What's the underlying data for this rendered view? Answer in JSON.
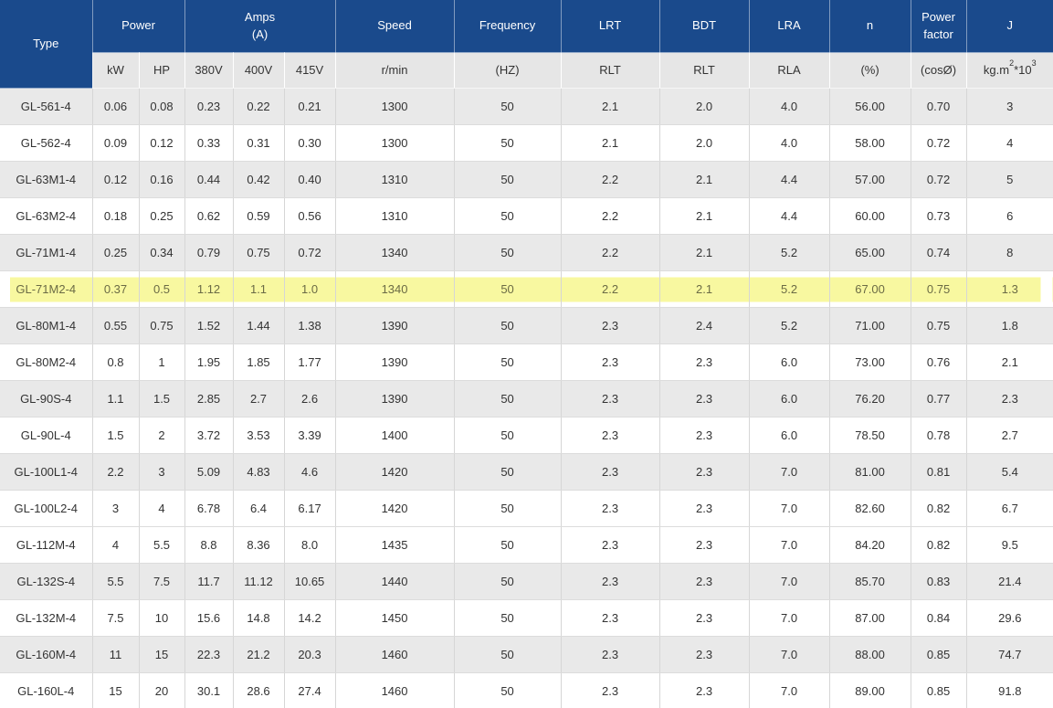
{
  "colors": {
    "header_bg": "#1a4a8c",
    "header_text": "#ffffff",
    "subheader_bg": "#e6e6e6",
    "row_bg": "#ffffff",
    "row_shaded_bg": "#e9e9e9",
    "highlight_bg": "#f8f8a0",
    "highlight_text": "#6b6b45",
    "text": "#333333",
    "border": "#d6d6d6"
  },
  "table": {
    "header": {
      "type": "Type",
      "power": "Power",
      "power_sub_kw": "kW",
      "power_sub_hp": "HP",
      "amps_line1": "Amps",
      "amps_line2": "(A)",
      "amps_sub_380": "380V",
      "amps_sub_400": "400V",
      "amps_sub_415": "415V",
      "speed": "Speed",
      "speed_sub": "r/min",
      "frequency": "Frequency",
      "frequency_sub": "(HZ)",
      "lrt": "LRT",
      "lrt_sub": "RLT",
      "bdt": "BDT",
      "bdt_sub": "RLT",
      "lra": "LRA",
      "lra_sub": "RLA",
      "n": "n",
      "n_sub": "(%)",
      "power_factor_line1": "Power",
      "power_factor_line2": "factor",
      "power_factor_sub": "(cosØ)",
      "j": "J",
      "j_unit": {
        "base": "kg.m",
        "sup1": "2",
        "mid": "*10",
        "sup2": "3"
      }
    },
    "rows": [
      {
        "cells": [
          "GL-561-4",
          "0.06",
          "0.08",
          "0.23",
          "0.22",
          "0.21",
          "1300",
          "50",
          "2.1",
          "2.0",
          "4.0",
          "56.00",
          "0.70",
          "3"
        ],
        "shaded": true,
        "highlighted": false
      },
      {
        "cells": [
          "GL-562-4",
          "0.09",
          "0.12",
          "0.33",
          "0.31",
          "0.30",
          "1300",
          "50",
          "2.1",
          "2.0",
          "4.0",
          "58.00",
          "0.72",
          "4"
        ],
        "shaded": false,
        "highlighted": false
      },
      {
        "cells": [
          "GL-63M1-4",
          "0.12",
          "0.16",
          "0.44",
          "0.42",
          "0.40",
          "1310",
          "50",
          "2.2",
          "2.1",
          "4.4",
          "57.00",
          "0.72",
          "5"
        ],
        "shaded": true,
        "highlighted": false
      },
      {
        "cells": [
          "GL-63M2-4",
          "0.18",
          "0.25",
          "0.62",
          "0.59",
          "0.56",
          "1310",
          "50",
          "2.2",
          "2.1",
          "4.4",
          "60.00",
          "0.73",
          "6"
        ],
        "shaded": false,
        "highlighted": false
      },
      {
        "cells": [
          "GL-71M1-4",
          "0.25",
          "0.34",
          "0.79",
          "0.75",
          "0.72",
          "1340",
          "50",
          "2.2",
          "2.1",
          "5.2",
          "65.00",
          "0.74",
          "8"
        ],
        "shaded": true,
        "highlighted": false
      },
      {
        "cells": [
          "GL-71M2-4",
          "0.37",
          "0.5",
          "1.12",
          "1.1",
          "1.0",
          "1340",
          "50",
          "2.2",
          "2.1",
          "5.2",
          "67.00",
          "0.75",
          "1.3"
        ],
        "shaded": false,
        "highlighted": true
      },
      {
        "cells": [
          "GL-80M1-4",
          "0.55",
          "0.75",
          "1.52",
          "1.44",
          "1.38",
          "1390",
          "50",
          "2.3",
          "2.4",
          "5.2",
          "71.00",
          "0.75",
          "1.8"
        ],
        "shaded": true,
        "highlighted": false
      },
      {
        "cells": [
          "GL-80M2-4",
          "0.8",
          "1",
          "1.95",
          "1.85",
          "1.77",
          "1390",
          "50",
          "2.3",
          "2.3",
          "6.0",
          "73.00",
          "0.76",
          "2.1"
        ],
        "shaded": false,
        "highlighted": false
      },
      {
        "cells": [
          "GL-90S-4",
          "1.1",
          "1.5",
          "2.85",
          "2.7",
          "2.6",
          "1390",
          "50",
          "2.3",
          "2.3",
          "6.0",
          "76.20",
          "0.77",
          "2.3"
        ],
        "shaded": true,
        "highlighted": false
      },
      {
        "cells": [
          "GL-90L-4",
          "1.5",
          "2",
          "3.72",
          "3.53",
          "3.39",
          "1400",
          "50",
          "2.3",
          "2.3",
          "6.0",
          "78.50",
          "0.78",
          "2.7"
        ],
        "shaded": false,
        "highlighted": false
      },
      {
        "cells": [
          "GL-100L1-4",
          "2.2",
          "3",
          "5.09",
          "4.83",
          "4.6",
          "1420",
          "50",
          "2.3",
          "2.3",
          "7.0",
          "81.00",
          "0.81",
          "5.4"
        ],
        "shaded": true,
        "highlighted": false
      },
      {
        "cells": [
          "GL-100L2-4",
          "3",
          "4",
          "6.78",
          "6.4",
          "6.17",
          "1420",
          "50",
          "2.3",
          "2.3",
          "7.0",
          "82.60",
          "0.82",
          "6.7"
        ],
        "shaded": false,
        "highlighted": false
      },
      {
        "cells": [
          "GL-112M-4",
          "4",
          "5.5",
          "8.8",
          "8.36",
          "8.0",
          "1435",
          "50",
          "2.3",
          "2.3",
          "7.0",
          "84.20",
          "0.82",
          "9.5"
        ],
        "shaded": false,
        "highlighted": false
      },
      {
        "cells": [
          "GL-132S-4",
          "5.5",
          "7.5",
          "11.7",
          "11.12",
          "10.65",
          "1440",
          "50",
          "2.3",
          "2.3",
          "7.0",
          "85.70",
          "0.83",
          "21.4"
        ],
        "shaded": true,
        "highlighted": false
      },
      {
        "cells": [
          "GL-132M-4",
          "7.5",
          "10",
          "15.6",
          "14.8",
          "14.2",
          "1450",
          "50",
          "2.3",
          "2.3",
          "7.0",
          "87.00",
          "0.84",
          "29.6"
        ],
        "shaded": false,
        "highlighted": false
      },
      {
        "cells": [
          "GL-160M-4",
          "11",
          "15",
          "22.3",
          "21.2",
          "20.3",
          "1460",
          "50",
          "2.3",
          "2.3",
          "7.0",
          "88.00",
          "0.85",
          "74.7"
        ],
        "shaded": true,
        "highlighted": false
      },
      {
        "cells": [
          "GL-160L-4",
          "15",
          "20",
          "30.1",
          "28.6",
          "27.4",
          "1460",
          "50",
          "2.3",
          "2.3",
          "7.0",
          "89.00",
          "0.85",
          "91.8"
        ],
        "shaded": false,
        "highlighted": false
      }
    ]
  }
}
